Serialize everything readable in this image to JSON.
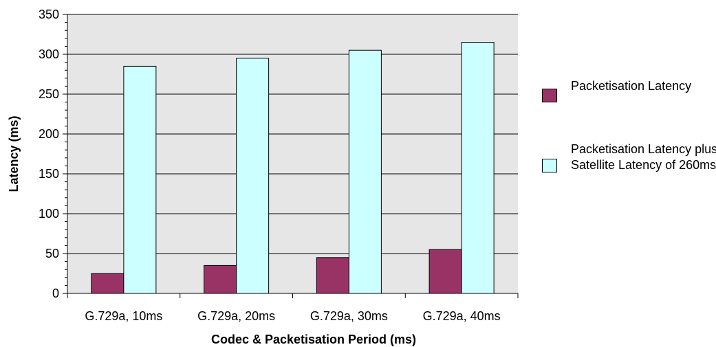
{
  "chart_data": {
    "type": "bar",
    "title": "",
    "xlabel": "Codec & Packetisation Period (ms)",
    "ylabel": "Latency (ms)",
    "categories": [
      "G.729a, 10ms",
      "G.729a, 20ms",
      "G.729a, 30ms",
      "G.729a, 40ms"
    ],
    "series": [
      {
        "name": "Packetisation Latency",
        "values": [
          25,
          35,
          45,
          55
        ],
        "color": "#993366"
      },
      {
        "name": "Packetisation Latency plus Satellite Latency of 260ms",
        "values": [
          285,
          295,
          305,
          315
        ],
        "color": "#ccffff"
      }
    ],
    "ylim": [
      0,
      350
    ],
    "yticks": [
      0,
      50,
      100,
      150,
      200,
      250,
      300,
      350
    ],
    "grid": true,
    "plot_background": "#e6e6e6",
    "legend_position": "right"
  },
  "legend": {
    "items": [
      {
        "label": "Packetisation Latency"
      },
      {
        "label": "Packetisation Latency plus Satellite Latency of 260ms"
      }
    ]
  }
}
